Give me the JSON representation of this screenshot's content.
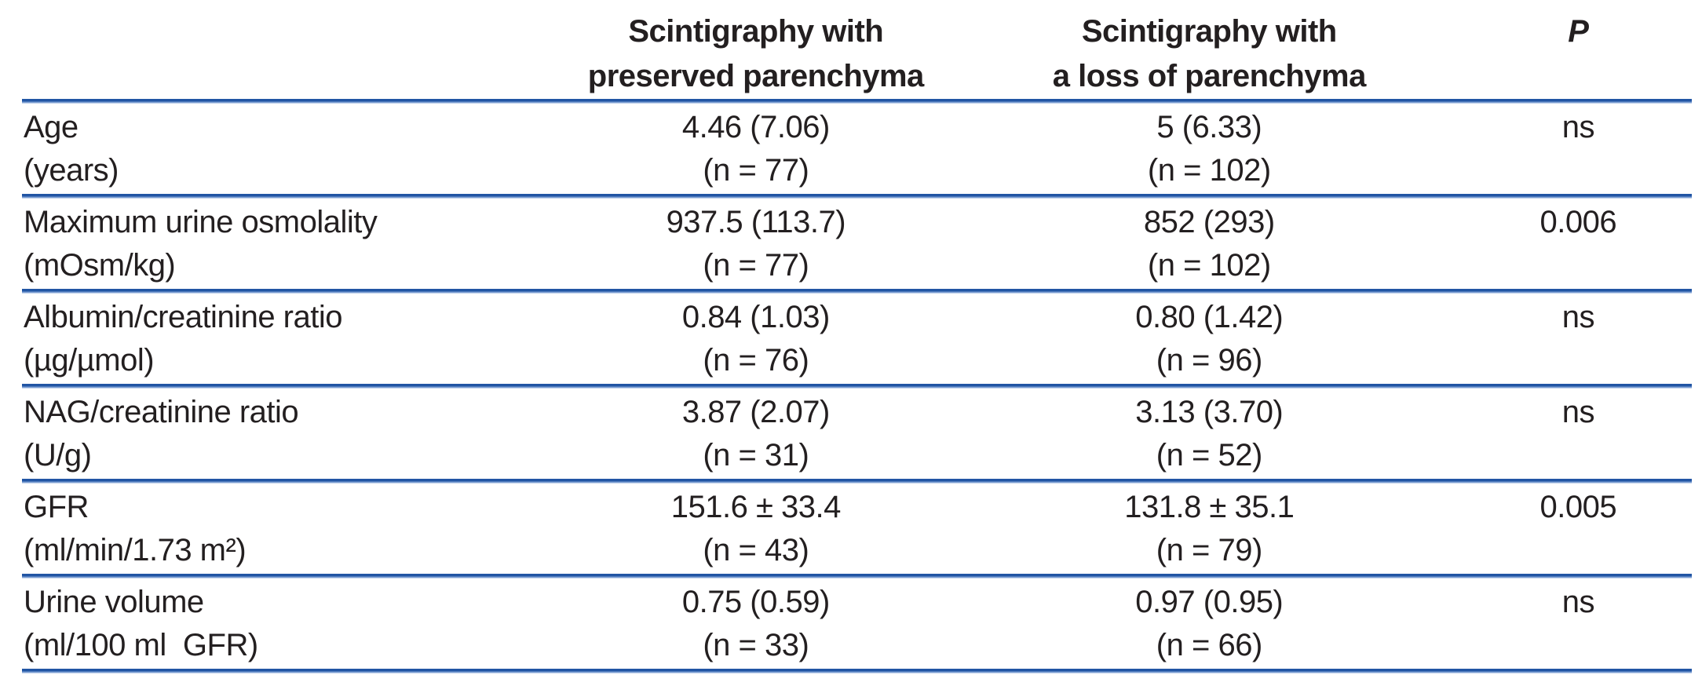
{
  "chart_data": {
    "type": "table",
    "header": {
      "group1_line1": "Scintigraphy with",
      "group1_line2": "preserved parenchyma",
      "group2_line1": "Scintigraphy with",
      "group2_line2": "a loss of parenchyma",
      "p_label": "P"
    },
    "rows": [
      {
        "label": "Age",
        "unit": "(years)",
        "v1": "4.46 (7.06)",
        "n1": "(n = 77)",
        "v2": "5 (6.33)",
        "n2": "(n = 102)",
        "p": "ns"
      },
      {
        "label": "Maximum urine osmolality",
        "unit": "(mOsm/kg)",
        "v1": "937.5 (113.7)",
        "n1": "(n = 77)",
        "v2": "852 (293)",
        "n2": "(n = 102)",
        "p": "0.006"
      },
      {
        "label": "Albumin/creatinine ratio",
        "unit": "(µg/µmol)",
        "v1": "0.84 (1.03)",
        "n1": "(n = 76)",
        "v2": "0.80 (1.42)",
        "n2": "(n = 96)",
        "p": "ns"
      },
      {
        "label": "NAG/creatinine ratio",
        "unit": "(U/g)",
        "v1": "3.87 (2.07)",
        "n1": "(n = 31)",
        "v2": "3.13 (3.70)",
        "n2": "(n = 52)",
        "p": "ns"
      },
      {
        "label": "GFR",
        "unit": "(ml/min/1.73 m²)",
        "v1": "151.6 ± 33.4",
        "n1": "(n = 43)",
        "v2": "131.8 ± 35.1",
        "n2": "(n = 79)",
        "p": "0.005"
      },
      {
        "label": "Urine volume",
        "unit": "(ml/100 ml  GFR)",
        "v1": "0.75 (0.59)",
        "n1": "(n = 33)",
        "v2": "0.97 (0.95)",
        "n2": "(n = 66)",
        "p": "ns"
      }
    ],
    "colors": {
      "rule_blue": "#2155a4",
      "rule_blue_light": "#7d9fd3",
      "text": "#231f20"
    }
  }
}
